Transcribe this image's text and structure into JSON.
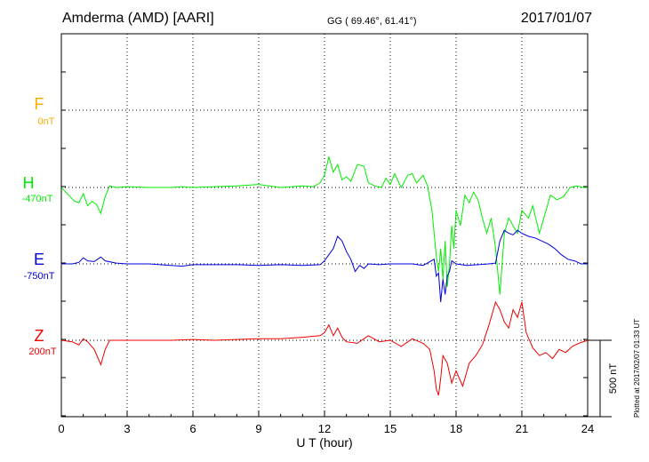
{
  "header": {
    "station": "Amderma (AMD)  [AARI]",
    "coords": "GG ( 69.46°,  61.41°)",
    "date": "2017/01/07"
  },
  "footer": {
    "plotted": "Plotted at 2017/02/07 01:33 UT"
  },
  "colors": {
    "F": "#ffaa00",
    "H": "#00ee00",
    "E": "#0000dd",
    "Z": "#ee0000",
    "grid": "#000000"
  },
  "chart_data": {
    "type": "line",
    "title": "Amderma (AMD)  [AARI]",
    "xlabel": "U T (hour)",
    "ylabel": "",
    "xlim": [
      0,
      24
    ],
    "x_ticks": [
      "0",
      "3",
      "6",
      "9",
      "12",
      "15",
      "18",
      "21",
      "24"
    ],
    "scale_bar_label": "500 nT",
    "scale_bar_nT": 500,
    "grid": true,
    "series": [
      {
        "name": "F",
        "baseline": "0nT",
        "points": []
      },
      {
        "name": "H",
        "baseline": "-470nT",
        "points": [
          [
            0,
            0
          ],
          [
            0.2,
            -30
          ],
          [
            0.4,
            -60
          ],
          [
            0.6,
            -90
          ],
          [
            0.8,
            -100
          ],
          [
            1.0,
            -40
          ],
          [
            1.2,
            -120
          ],
          [
            1.4,
            -90
          ],
          [
            1.6,
            -110
          ],
          [
            1.8,
            -170
          ],
          [
            2.0,
            -60
          ],
          [
            2.2,
            10
          ],
          [
            2.5,
            0
          ],
          [
            3,
            5
          ],
          [
            4,
            0
          ],
          [
            5,
            0
          ],
          [
            5.5,
            5
          ],
          [
            6,
            0
          ],
          [
            7,
            5
          ],
          [
            8,
            10
          ],
          [
            9,
            20
          ],
          [
            10,
            0
          ],
          [
            11,
            10
          ],
          [
            11.5,
            5
          ],
          [
            11.8,
            30
          ],
          [
            12.0,
            80
          ],
          [
            12.2,
            200
          ],
          [
            12.3,
            150
          ],
          [
            12.4,
            100
          ],
          [
            12.6,
            150
          ],
          [
            12.8,
            50
          ],
          [
            13.0,
            70
          ],
          [
            13.2,
            40
          ],
          [
            13.5,
            150
          ],
          [
            13.8,
            140
          ],
          [
            14.0,
            30
          ],
          [
            14.3,
            10
          ],
          [
            14.6,
            0
          ],
          [
            14.8,
            60
          ],
          [
            15.0,
            20
          ],
          [
            15.2,
            90
          ],
          [
            15.5,
            0
          ],
          [
            15.8,
            80
          ],
          [
            16.0,
            90
          ],
          [
            16.2,
            30
          ],
          [
            16.5,
            80
          ],
          [
            16.7,
            10
          ],
          [
            16.9,
            -150
          ],
          [
            17.0,
            -300
          ],
          [
            17.1,
            -450
          ],
          [
            17.2,
            -550
          ],
          [
            17.3,
            -400
          ],
          [
            17.4,
            -600
          ],
          [
            17.5,
            -350
          ],
          [
            17.6,
            -650
          ],
          [
            17.7,
            -500
          ],
          [
            17.8,
            -250
          ],
          [
            17.9,
            -400
          ],
          [
            18.0,
            -150
          ],
          [
            18.2,
            -250
          ],
          [
            18.4,
            -50
          ],
          [
            18.6,
            -100
          ],
          [
            18.8,
            -30
          ],
          [
            19.0,
            -80
          ],
          [
            19.2,
            -200
          ],
          [
            19.4,
            -300
          ],
          [
            19.6,
            -200
          ],
          [
            19.8,
            -400
          ],
          [
            20.0,
            -700
          ],
          [
            20.2,
            -300
          ],
          [
            20.4,
            -200
          ],
          [
            20.6,
            -250
          ],
          [
            20.8,
            -300
          ],
          [
            21.0,
            -150
          ],
          [
            21.3,
            -200
          ],
          [
            21.5,
            -120
          ],
          [
            21.8,
            -300
          ],
          [
            22.0,
            -200
          ],
          [
            22.3,
            -50
          ],
          [
            22.6,
            -80
          ],
          [
            22.9,
            -60
          ],
          [
            23.2,
            0
          ],
          [
            23.5,
            10
          ],
          [
            23.8,
            0
          ],
          [
            24,
            0
          ]
        ]
      },
      {
        "name": "E",
        "baseline": "-750nT",
        "points": [
          [
            0,
            0
          ],
          [
            0.5,
            0
          ],
          [
            0.8,
            10
          ],
          [
            1.0,
            40
          ],
          [
            1.2,
            20
          ],
          [
            1.5,
            15
          ],
          [
            1.8,
            45
          ],
          [
            2.0,
            20
          ],
          [
            2.5,
            5
          ],
          [
            3,
            0
          ],
          [
            3.5,
            0
          ],
          [
            4,
            0
          ],
          [
            4.5,
            -5
          ],
          [
            5,
            -10
          ],
          [
            5.5,
            -15
          ],
          [
            6,
            -5
          ],
          [
            7,
            -5
          ],
          [
            8,
            -5
          ],
          [
            9,
            -10
          ],
          [
            10,
            -5
          ],
          [
            11,
            -10
          ],
          [
            11.8,
            -5
          ],
          [
            12.0,
            20
          ],
          [
            12.2,
            60
          ],
          [
            12.4,
            100
          ],
          [
            12.6,
            180
          ],
          [
            12.8,
            150
          ],
          [
            13.0,
            80
          ],
          [
            13.2,
            30
          ],
          [
            13.4,
            -50
          ],
          [
            13.6,
            -10
          ],
          [
            13.8,
            -30
          ],
          [
            14.0,
            0
          ],
          [
            14.5,
            -5
          ],
          [
            15,
            0
          ],
          [
            15.5,
            0
          ],
          [
            16,
            0
          ],
          [
            16.5,
            -10
          ],
          [
            17.0,
            30
          ],
          [
            17.1,
            -80
          ],
          [
            17.2,
            -60
          ],
          [
            17.3,
            -250
          ],
          [
            17.4,
            -100
          ],
          [
            17.5,
            -200
          ],
          [
            17.6,
            -80
          ],
          [
            17.7,
            -50
          ],
          [
            17.8,
            20
          ],
          [
            18.0,
            0
          ],
          [
            18.5,
            -10
          ],
          [
            19,
            -5
          ],
          [
            19.5,
            0
          ],
          [
            19.8,
            5
          ],
          [
            20.0,
            150
          ],
          [
            20.2,
            220
          ],
          [
            20.4,
            200
          ],
          [
            20.6,
            190
          ],
          [
            20.8,
            220
          ],
          [
            21.0,
            200
          ],
          [
            21.3,
            180
          ],
          [
            21.6,
            170
          ],
          [
            21.9,
            150
          ],
          [
            22.2,
            130
          ],
          [
            22.5,
            100
          ],
          [
            22.8,
            60
          ],
          [
            23.1,
            30
          ],
          [
            23.4,
            20
          ],
          [
            23.7,
            0
          ],
          [
            24,
            0
          ]
        ]
      },
      {
        "name": "Z",
        "baseline": "200nT",
        "points": [
          [
            0,
            0
          ],
          [
            0.5,
            -10
          ],
          [
            0.8,
            -30
          ],
          [
            1.0,
            10
          ],
          [
            1.2,
            -10
          ],
          [
            1.5,
            -60
          ],
          [
            1.8,
            -160
          ],
          [
            2.0,
            -60
          ],
          [
            2.2,
            0
          ],
          [
            3,
            0
          ],
          [
            4,
            0
          ],
          [
            5,
            0
          ],
          [
            6,
            5
          ],
          [
            7,
            0
          ],
          [
            8,
            5
          ],
          [
            9,
            10
          ],
          [
            10,
            10
          ],
          [
            11,
            20
          ],
          [
            11.8,
            30
          ],
          [
            12.0,
            50
          ],
          [
            12.2,
            100
          ],
          [
            12.4,
            30
          ],
          [
            12.6,
            80
          ],
          [
            12.8,
            20
          ],
          [
            13.0,
            -10
          ],
          [
            13.5,
            -20
          ],
          [
            14.0,
            30
          ],
          [
            14.5,
            -10
          ],
          [
            15.0,
            0
          ],
          [
            15.5,
            -40
          ],
          [
            16.0,
            10
          ],
          [
            16.5,
            -20
          ],
          [
            16.8,
            -60
          ],
          [
            17.0,
            -200
          ],
          [
            17.1,
            -320
          ],
          [
            17.2,
            -360
          ],
          [
            17.3,
            -250
          ],
          [
            17.4,
            -100
          ],
          [
            17.6,
            -150
          ],
          [
            17.8,
            -280
          ],
          [
            18.0,
            -200
          ],
          [
            18.3,
            -300
          ],
          [
            18.6,
            -150
          ],
          [
            18.9,
            -100
          ],
          [
            19.2,
            -30
          ],
          [
            19.5,
            100
          ],
          [
            19.8,
            250
          ],
          [
            20.0,
            200
          ],
          [
            20.2,
            120
          ],
          [
            20.4,
            80
          ],
          [
            20.6,
            200
          ],
          [
            20.8,
            150
          ],
          [
            21.0,
            250
          ],
          [
            21.2,
            50
          ],
          [
            21.5,
            -50
          ],
          [
            21.8,
            -100
          ],
          [
            22.1,
            -80
          ],
          [
            22.4,
            -120
          ],
          [
            22.7,
            -60
          ],
          [
            23.0,
            -80
          ],
          [
            23.3,
            -40
          ],
          [
            23.6,
            -20
          ],
          [
            24,
            0
          ]
        ]
      }
    ]
  }
}
